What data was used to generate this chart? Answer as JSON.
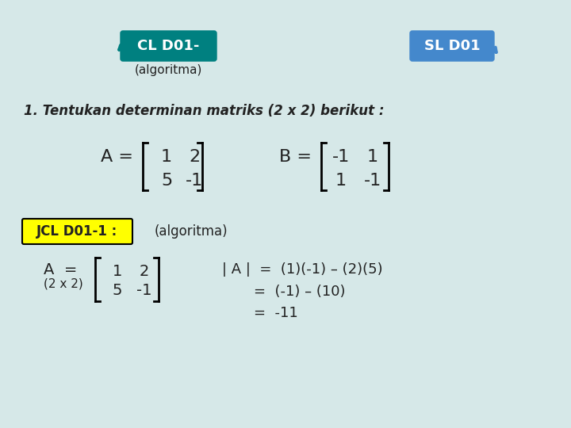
{
  "bg_color": "#d6e8e8",
  "title_cl": "CL D01-",
  "title_sl": "SL D01",
  "subtitle": "(algoritma)",
  "cl_box_color": "#008080",
  "sl_box_color": "#4488cc",
  "question": "1. Tentukan determinan matriks (2 x 2) berikut :",
  "matrix_A_label": "A = ",
  "matrix_A": [
    [
      1,
      2
    ],
    [
      5,
      -1
    ]
  ],
  "matrix_B_label": "B = ",
  "matrix_B": [
    [
      -1,
      1
    ],
    [
      1,
      -1
    ]
  ],
  "jcl_label": "JCL D01-1 :",
  "jcl_box_color": "#ffff00",
  "jcl_algo": "(algoritma)",
  "sol_label1": "A =",
  "sol_label2": "(2 x 2)",
  "sol_matrix": [
    [
      1,
      2
    ],
    [
      5,
      -1
    ]
  ],
  "sol_line1": "| A |  =  (1)(-1) – (2)(5)",
  "sol_line2": "=  (-1) – (10)",
  "sol_line3": "=  -11",
  "font_color": "#222222",
  "font_family": "Comic Sans MS"
}
